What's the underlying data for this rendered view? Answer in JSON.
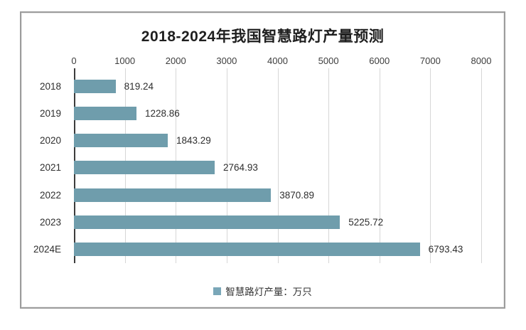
{
  "chart_data": {
    "type": "bar",
    "orientation": "horizontal",
    "title": "2018-2024年我国智慧路灯产量预测",
    "categories": [
      "2018",
      "2019",
      "2020",
      "2021",
      "2022",
      "2023",
      "2024E"
    ],
    "values": [
      819.24,
      1228.86,
      1843.29,
      2764.93,
      3870.89,
      5225.72,
      6793.43
    ],
    "value_labels": [
      "819.24",
      "1228.86",
      "1843.29",
      "2764.93",
      "3870.89",
      "5225.72",
      "6793.43"
    ],
    "xlabel": "",
    "ylabel": "",
    "x_axis": {
      "position": "top",
      "min": 0,
      "max": 8000,
      "ticks": [
        "0",
        "1000",
        "2000",
        "3000",
        "4000",
        "5000",
        "6000",
        "7000",
        "8000"
      ]
    },
    "grid": true,
    "legend": {
      "label": "智慧路灯产量：万只",
      "position": "bottom"
    },
    "colors": {
      "bar": "#6f9dac",
      "legend_marker": "#7aa7b8",
      "grid": "#d6d6d6",
      "axis_line": "#3c3c3c",
      "text": "#2e2e2e",
      "panel_border": "#9c9c9c"
    }
  }
}
